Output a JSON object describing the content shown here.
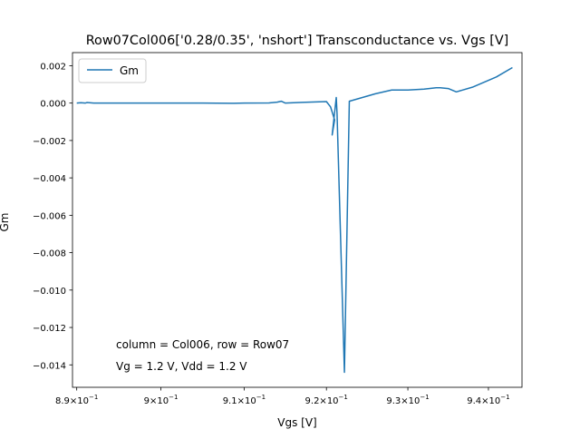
{
  "chart_data": {
    "type": "line",
    "title": "Row07Col006['0.28/0.35', 'nshort'] Transconductance vs. Vgs [V]",
    "xlabel": "Vgs [V]",
    "ylabel": "Gm",
    "xscale": "log",
    "xlim": [
      0.8895,
      0.9442
    ],
    "ylim": [
      -0.0152,
      0.0027
    ],
    "x_ticks": [
      {
        "value": 0.89,
        "base": "8.9×10",
        "exp": "−1"
      },
      {
        "value": 0.9,
        "base": "9×10",
        "exp": "−1"
      },
      {
        "value": 0.91,
        "base": "9.1×10",
        "exp": "−1"
      },
      {
        "value": 0.92,
        "base": "9.2×10",
        "exp": "−1"
      },
      {
        "value": 0.93,
        "base": "9.3×10",
        "exp": "−1"
      },
      {
        "value": 0.94,
        "base": "9.4×10",
        "exp": "−1"
      }
    ],
    "y_ticks": [
      {
        "value": 0.002,
        "label": "0.002"
      },
      {
        "value": 0.0,
        "label": "0.000"
      },
      {
        "value": -0.002,
        "label": "−0.002"
      },
      {
        "value": -0.004,
        "label": "−0.004"
      },
      {
        "value": -0.006,
        "label": "−0.006"
      },
      {
        "value": -0.008,
        "label": "−0.008"
      },
      {
        "value": -0.01,
        "label": "−0.010"
      },
      {
        "value": -0.012,
        "label": "−0.012"
      },
      {
        "value": -0.014,
        "label": "−0.014"
      }
    ],
    "grid": false,
    "legend": "top-left",
    "series": [
      {
        "name": "Gm",
        "color": "#1f77b4",
        "x": [
          0.89,
          0.8905,
          0.891,
          0.8912,
          0.892,
          0.895,
          0.9,
          0.905,
          0.9088,
          0.91,
          0.913,
          0.914,
          0.9145,
          0.915,
          0.917,
          0.92,
          0.9205,
          0.921,
          0.9207,
          0.9212,
          0.9213,
          0.9222,
          0.9228,
          0.926,
          0.928,
          0.93,
          0.932,
          0.9335,
          0.934,
          0.935,
          0.936,
          0.938,
          0.941,
          0.943
        ],
        "y": [
          0.0,
          2e-05,
          0.0,
          3e-05,
          0.0,
          0.0,
          0.0,
          0.0,
          -1e-05,
          0.0,
          1e-05,
          5e-05,
          0.0001,
          0.0,
          4e-05,
          8e-05,
          -0.0002,
          -0.0009,
          -0.0017,
          0.0003,
          -0.0006,
          -0.0144,
          0.0001,
          0.0005,
          0.0007,
          0.0007,
          0.00075,
          0.00082,
          0.00082,
          0.00078,
          0.0006,
          0.00085,
          0.0014,
          0.0019
        ]
      }
    ],
    "annotations": [
      "column = Col006, row = Row07",
      "Vg = 1.2 V, Vdd = 1.2 V"
    ]
  }
}
